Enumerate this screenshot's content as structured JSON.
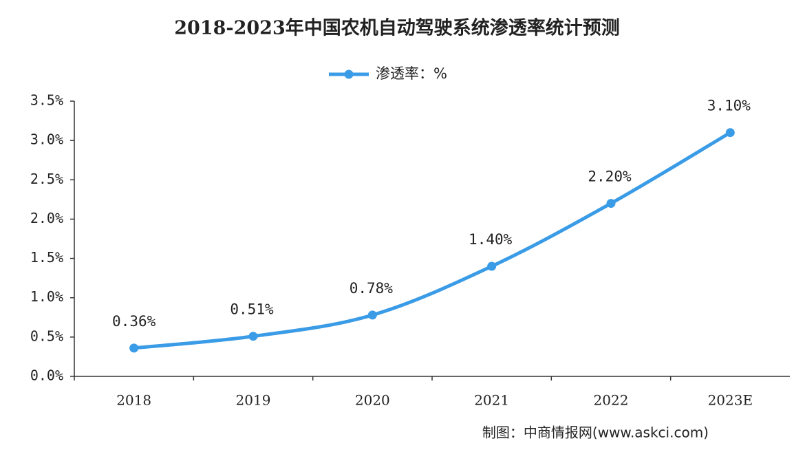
{
  "chart_data": {
    "type": "line",
    "title": "2018-2023年中国农机自动驾驶系统渗透率统计预测",
    "categories": [
      "2018",
      "2019",
      "2020",
      "2021",
      "2022",
      "2023E"
    ],
    "series": [
      {
        "name": "渗透率：%",
        "color": "#3a9be6",
        "values": [
          0.36,
          0.51,
          0.78,
          1.4,
          2.2,
          3.1
        ],
        "value_labels": [
          "0.36%",
          "0.51%",
          "0.78%",
          "1.40%",
          "2.20%",
          "3.10%"
        ]
      }
    ],
    "ylim": [
      0,
      3.5
    ],
    "yticks": [
      {
        "value": 0,
        "label": "0.0%"
      },
      {
        "value": 0.5,
        "label": "0.5%"
      },
      {
        "value": 1,
        "label": "1.0%"
      },
      {
        "value": 1.5,
        "label": "1.5%"
      },
      {
        "value": 2,
        "label": "2.0%"
      },
      {
        "value": 2.5,
        "label": "2.5%"
      },
      {
        "value": 3,
        "label": "3.0%"
      },
      {
        "value": 3.5,
        "label": "3.5%"
      }
    ],
    "grid": false,
    "legend": "top",
    "source": "制图：中商情报网(www.askci.com)"
  }
}
